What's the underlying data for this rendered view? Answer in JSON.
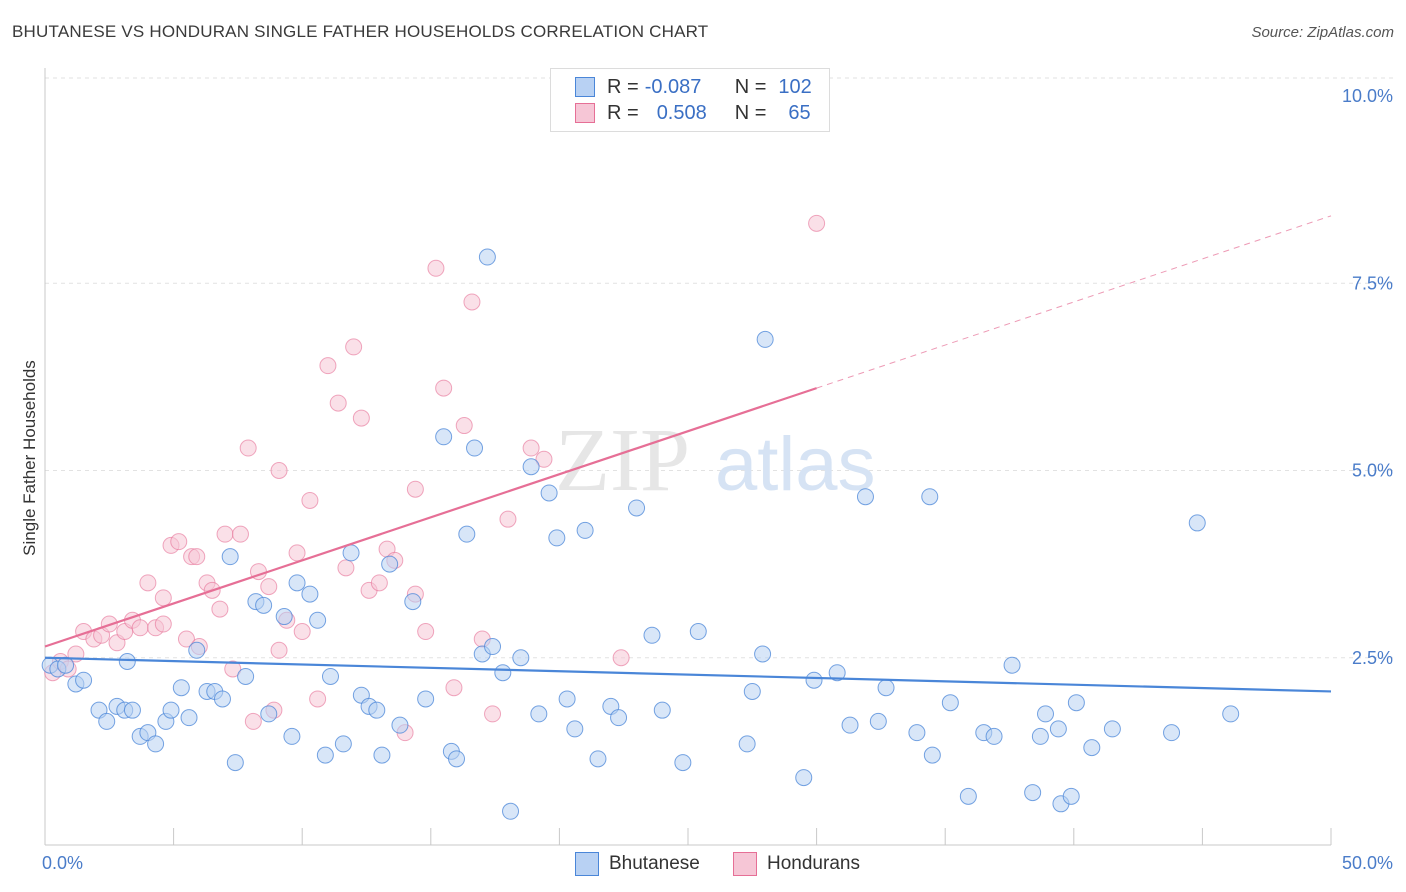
{
  "title": "BHUTANESE VS HONDURAN SINGLE FATHER HOUSEHOLDS CORRELATION CHART",
  "source": "Source: ZipAtlas.com",
  "watermark": {
    "zip": "ZIP",
    "atlas": "atlas"
  },
  "colors": {
    "bhutanese": "#4a86d8",
    "bhutanese_fill": "#b8d1f3",
    "hondurans": "#e66f96",
    "hondurans_fill": "#f6c6d6",
    "axis_text": "#4a7cc9",
    "grid": "#e2e2e2"
  },
  "legend": {
    "rows": [
      {
        "r_label": "R =",
        "r_value": "-0.087",
        "n_label": "N =",
        "n_value": "102"
      },
      {
        "r_label": "R =",
        "r_value": "0.508",
        "n_label": "N =",
        "n_value": "65"
      }
    ]
  },
  "chart_data": {
    "type": "scatter",
    "xlabel": "",
    "ylabel": "Single Father Households",
    "xlim": [
      0,
      50
    ],
    "ylim": [
      0,
      10.5
    ],
    "x_ticks": [
      "0.0%",
      "50.0%"
    ],
    "y_ticks": [
      {
        "value": 2.5,
        "label": "2.5%"
      },
      {
        "value": 5.0,
        "label": "5.0%"
      },
      {
        "value": 7.5,
        "label": "7.5%"
      },
      {
        "value": 10.0,
        "label": "10.0%"
      }
    ],
    "grid": "horizontal dashed",
    "legend_position": "top-center",
    "series": [
      {
        "name": "Bhutanese",
        "regression": {
          "x0": 0,
          "y0": 2.5,
          "x1": 50,
          "y1": 2.05
        },
        "points": [
          [
            0.2,
            2.4
          ],
          [
            0.5,
            2.35
          ],
          [
            0.8,
            2.4
          ],
          [
            1.2,
            2.15
          ],
          [
            1.5,
            2.2
          ],
          [
            2.1,
            1.8
          ],
          [
            2.4,
            1.65
          ],
          [
            2.8,
            1.85
          ],
          [
            3.1,
            1.8
          ],
          [
            3.4,
            1.8
          ],
          [
            3.7,
            1.45
          ],
          [
            4.0,
            1.5
          ],
          [
            4.3,
            1.35
          ],
          [
            4.7,
            1.65
          ],
          [
            4.9,
            1.8
          ],
          [
            5.3,
            2.1
          ],
          [
            5.6,
            1.7
          ],
          [
            5.9,
            2.6
          ],
          [
            6.3,
            2.05
          ],
          [
            6.6,
            2.05
          ],
          [
            6.9,
            1.95
          ],
          [
            7.2,
            3.85
          ],
          [
            7.4,
            1.1
          ],
          [
            7.8,
            2.25
          ],
          [
            8.2,
            3.25
          ],
          [
            8.5,
            3.2
          ],
          [
            8.7,
            1.75
          ],
          [
            9.3,
            3.05
          ],
          [
            9.6,
            1.45
          ],
          [
            9.8,
            3.5
          ],
          [
            10.3,
            3.35
          ],
          [
            10.6,
            3.0
          ],
          [
            10.9,
            1.2
          ],
          [
            11.1,
            2.25
          ],
          [
            11.6,
            1.35
          ],
          [
            11.9,
            3.9
          ],
          [
            12.3,
            2.0
          ],
          [
            12.6,
            1.85
          ],
          [
            12.9,
            1.8
          ],
          [
            13.1,
            1.2
          ],
          [
            13.4,
            3.75
          ],
          [
            13.8,
            1.6
          ],
          [
            14.3,
            3.25
          ],
          [
            14.8,
            1.95
          ],
          [
            15.5,
            5.45
          ],
          [
            15.8,
            1.25
          ],
          [
            16.0,
            1.15
          ],
          [
            16.4,
            4.15
          ],
          [
            16.7,
            5.3
          ],
          [
            17.0,
            2.55
          ],
          [
            17.2,
            7.85
          ],
          [
            17.4,
            2.65
          ],
          [
            17.8,
            2.3
          ],
          [
            18.1,
            0.45
          ],
          [
            18.5,
            2.5
          ],
          [
            18.9,
            5.05
          ],
          [
            19.2,
            1.75
          ],
          [
            19.6,
            4.7
          ],
          [
            19.9,
            4.1
          ],
          [
            20.3,
            1.95
          ],
          [
            20.6,
            1.55
          ],
          [
            21.0,
            4.2
          ],
          [
            21.5,
            1.15
          ],
          [
            22.0,
            1.85
          ],
          [
            22.3,
            1.7
          ],
          [
            23.0,
            4.5
          ],
          [
            23.6,
            2.8
          ],
          [
            24.0,
            1.8
          ],
          [
            24.8,
            1.1
          ],
          [
            25.4,
            2.85
          ],
          [
            27.3,
            1.35
          ],
          [
            27.5,
            2.05
          ],
          [
            27.9,
            2.55
          ],
          [
            28.0,
            6.75
          ],
          [
            29.5,
            0.9
          ],
          [
            29.9,
            2.2
          ],
          [
            30.8,
            2.3
          ],
          [
            31.3,
            1.6
          ],
          [
            31.9,
            4.65
          ],
          [
            32.4,
            1.65
          ],
          [
            32.7,
            2.1
          ],
          [
            33.9,
            1.5
          ],
          [
            34.4,
            4.65
          ],
          [
            34.5,
            1.2
          ],
          [
            35.2,
            1.9
          ],
          [
            35.9,
            0.65
          ],
          [
            36.5,
            1.5
          ],
          [
            36.9,
            1.45
          ],
          [
            37.6,
            2.4
          ],
          [
            38.4,
            0.7
          ],
          [
            38.7,
            1.45
          ],
          [
            38.9,
            1.75
          ],
          [
            39.4,
            1.55
          ],
          [
            39.5,
            0.55
          ],
          [
            39.9,
            0.65
          ],
          [
            40.1,
            1.9
          ],
          [
            40.7,
            1.3
          ],
          [
            41.5,
            1.55
          ],
          [
            43.8,
            1.5
          ],
          [
            44.8,
            4.3
          ],
          [
            46.1,
            1.75
          ],
          [
            3.2,
            2.45
          ]
        ]
      },
      {
        "name": "Hondurans",
        "regression": {
          "x0": 0,
          "y0": 2.65,
          "x1": 30,
          "y1": 6.1,
          "dashed_to_x": 50,
          "dashed_to_y": 8.4
        },
        "points": [
          [
            0.3,
            2.3
          ],
          [
            0.6,
            2.45
          ],
          [
            0.9,
            2.35
          ],
          [
            1.2,
            2.55
          ],
          [
            1.5,
            2.85
          ],
          [
            1.9,
            2.75
          ],
          [
            2.2,
            2.8
          ],
          [
            2.5,
            2.95
          ],
          [
            2.8,
            2.7
          ],
          [
            3.1,
            2.85
          ],
          [
            3.4,
            3.0
          ],
          [
            3.7,
            2.9
          ],
          [
            4.0,
            3.5
          ],
          [
            4.3,
            2.9
          ],
          [
            4.6,
            2.95
          ],
          [
            4.9,
            4.0
          ],
          [
            5.2,
            4.05
          ],
          [
            5.5,
            2.75
          ],
          [
            5.7,
            3.85
          ],
          [
            5.9,
            3.85
          ],
          [
            6.3,
            3.5
          ],
          [
            6.5,
            3.4
          ],
          [
            6.8,
            3.15
          ],
          [
            7.0,
            4.15
          ],
          [
            7.3,
            2.35
          ],
          [
            7.6,
            4.15
          ],
          [
            7.9,
            5.3
          ],
          [
            8.1,
            1.65
          ],
          [
            8.3,
            3.65
          ],
          [
            8.7,
            3.45
          ],
          [
            9.1,
            2.6
          ],
          [
            9.4,
            3.0
          ],
          [
            9.8,
            3.9
          ],
          [
            10.0,
            2.85
          ],
          [
            10.3,
            4.6
          ],
          [
            10.6,
            1.95
          ],
          [
            11.0,
            6.4
          ],
          [
            11.4,
            5.9
          ],
          [
            11.7,
            3.7
          ],
          [
            12.0,
            6.65
          ],
          [
            12.3,
            5.7
          ],
          [
            12.6,
            3.4
          ],
          [
            13.0,
            3.5
          ],
          [
            13.3,
            3.95
          ],
          [
            13.6,
            3.8
          ],
          [
            14.0,
            1.5
          ],
          [
            14.4,
            3.35
          ],
          [
            14.8,
            2.85
          ],
          [
            15.2,
            7.7
          ],
          [
            15.5,
            6.1
          ],
          [
            15.9,
            2.1
          ],
          [
            16.3,
            5.6
          ],
          [
            16.6,
            7.25
          ],
          [
            17.0,
            2.75
          ],
          [
            17.4,
            1.75
          ],
          [
            18.0,
            4.35
          ],
          [
            18.9,
            5.3
          ],
          [
            19.4,
            5.15
          ],
          [
            22.4,
            2.5
          ],
          [
            30.0,
            8.3
          ],
          [
            8.9,
            1.8
          ],
          [
            6.0,
            2.65
          ],
          [
            4.6,
            3.3
          ],
          [
            9.1,
            5.0
          ],
          [
            14.4,
            4.75
          ]
        ]
      }
    ]
  },
  "bottom_legend": {
    "bhutanese": "Bhutanese",
    "hondurans": "Hondurans"
  }
}
